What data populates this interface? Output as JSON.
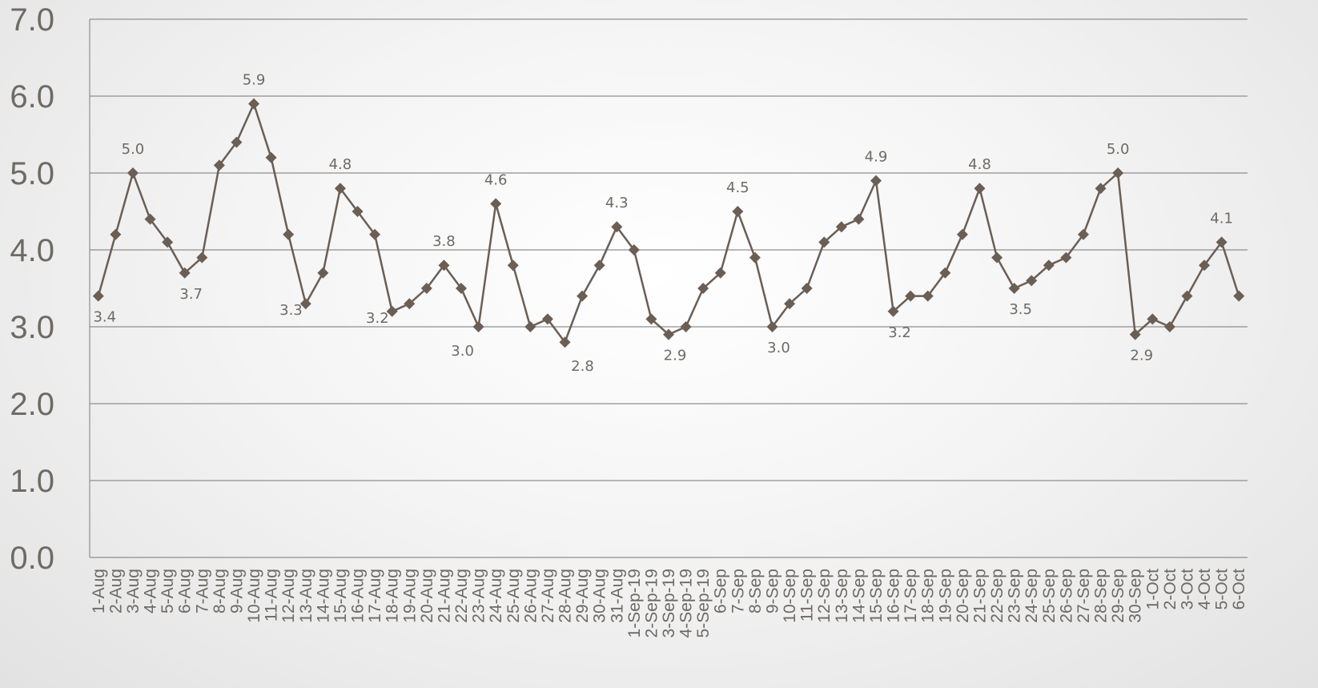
{
  "chart_data": {
    "type": "line",
    "title": "",
    "xlabel": "",
    "ylabel": "",
    "ylim": [
      0,
      7
    ],
    "yticks": [
      "0.0",
      "1.0",
      "2.0",
      "3.0",
      "4.0",
      "5.0",
      "6.0",
      "7.0"
    ],
    "grid": true,
    "legend": "none",
    "colors": {
      "series": "#6b5e55",
      "grid": "#8e8e8e",
      "text": "#6e6a66"
    },
    "categories": [
      "1-Aug",
      "2-Aug",
      "3-Aug",
      "4-Aug",
      "5-Aug",
      "6-Aug",
      "7-Aug",
      "8-Aug",
      "9-Aug",
      "10-Aug",
      "11-Aug",
      "12-Aug",
      "13-Aug",
      "14-Aug",
      "15-Aug",
      "16-Aug",
      "17-Aug",
      "18-Aug",
      "19-Aug",
      "20-Aug",
      "21-Aug",
      "22-Aug",
      "23-Aug",
      "24-Aug",
      "25-Aug",
      "26-Aug",
      "27-Aug",
      "28-Aug",
      "29-Aug",
      "30-Aug",
      "31-Aug",
      "1-Sep-19",
      "2-Sep-19",
      "3-Sep-19",
      "4-Sep-19",
      "5-Sep-19",
      "6-Sep",
      "7-Sep",
      "8-Sep",
      "9-Sep",
      "10-Sep",
      "11-Sep",
      "12-Sep",
      "13-Sep",
      "14-Sep",
      "15-Sep",
      "16-Sep",
      "17-Sep",
      "18-Sep",
      "19-Sep",
      "20-Sep",
      "21-Sep",
      "22-Sep",
      "23-Sep",
      "24-Sep",
      "25-Sep",
      "26-Sep",
      "27-Sep",
      "28-Sep",
      "29-Sep",
      "30-Sep",
      "1-Oct",
      "2-Oct",
      "3-Oct",
      "4-Oct",
      "5-Oct",
      "6-Oct"
    ],
    "values": [
      3.4,
      4.2,
      5.0,
      4.4,
      4.1,
      3.7,
      3.9,
      5.1,
      5.4,
      5.9,
      5.2,
      4.2,
      3.3,
      3.7,
      4.8,
      4.5,
      4.2,
      3.2,
      3.3,
      3.5,
      3.8,
      3.5,
      3.0,
      4.6,
      3.8,
      3.0,
      3.1,
      2.8,
      3.4,
      3.8,
      4.3,
      4.0,
      3.1,
      2.9,
      3.0,
      3.5,
      3.7,
      4.5,
      3.9,
      3.0,
      3.3,
      3.5,
      4.1,
      4.3,
      4.4,
      4.9,
      3.2,
      3.4,
      3.4,
      3.7,
      4.2,
      4.8,
      3.9,
      3.5,
      3.6,
      3.8,
      3.9,
      4.2,
      4.8,
      5.0,
      2.9,
      3.1,
      3.0,
      3.4,
      3.8,
      4.1,
      3.4
    ],
    "data_labels": [
      {
        "index": 0,
        "text": "3.4",
        "pos": "below"
      },
      {
        "index": 2,
        "text": "5.0",
        "pos": "above"
      },
      {
        "index": 5,
        "text": "3.7",
        "pos": "below"
      },
      {
        "index": 9,
        "text": "5.9",
        "pos": "above"
      },
      {
        "index": 12,
        "text": "3.3",
        "pos": "left"
      },
      {
        "index": 14,
        "text": "4.8",
        "pos": "above"
      },
      {
        "index": 17,
        "text": "3.2",
        "pos": "left"
      },
      {
        "index": 20,
        "text": "3.8",
        "pos": "above"
      },
      {
        "index": 22,
        "text": "3.0",
        "pos": "below-left"
      },
      {
        "index": 23,
        "text": "4.6",
        "pos": "above"
      },
      {
        "index": 27,
        "text": "2.8",
        "pos": "below-right"
      },
      {
        "index": 30,
        "text": "4.3",
        "pos": "above"
      },
      {
        "index": 33,
        "text": "2.9",
        "pos": "below"
      },
      {
        "index": 37,
        "text": "4.5",
        "pos": "above"
      },
      {
        "index": 39,
        "text": "3.0",
        "pos": "below"
      },
      {
        "index": 45,
        "text": "4.9",
        "pos": "above"
      },
      {
        "index": 46,
        "text": "3.2",
        "pos": "below"
      },
      {
        "index": 51,
        "text": "4.8",
        "pos": "above"
      },
      {
        "index": 53,
        "text": "3.5",
        "pos": "below"
      },
      {
        "index": 59,
        "text": "5.0",
        "pos": "above"
      },
      {
        "index": 60,
        "text": "2.9",
        "pos": "below"
      },
      {
        "index": 65,
        "text": "4.1",
        "pos": "above"
      }
    ]
  }
}
